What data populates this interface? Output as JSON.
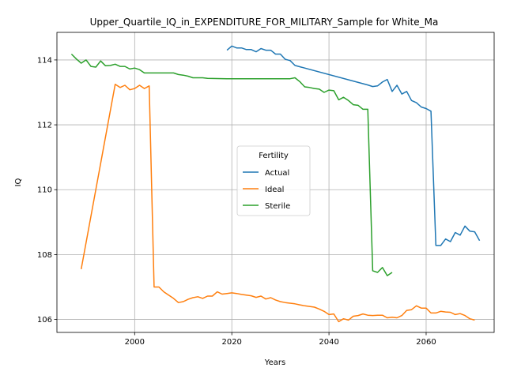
{
  "chart_data": {
    "type": "line",
    "title": "Upper_Quartile_IQ_in_EXPENDITURE_FOR_MILITARY_Sample for White_Ma",
    "xlabel": "Years",
    "ylabel": "IQ",
    "xlim": [
      1984,
      2074
    ],
    "ylim": [
      105.6,
      114.85
    ],
    "xticks": [
      2000,
      2020,
      2040,
      2060
    ],
    "yticks": [
      106,
      108,
      110,
      112,
      114
    ],
    "grid": true,
    "legend": {
      "title": "Fertility",
      "placement": "center"
    },
    "series": [
      {
        "name": "Actual",
        "color": "#1f77b4",
        "points": [
          [
            2019,
            114.3
          ],
          [
            2020,
            114.43
          ],
          [
            2021,
            114.37
          ],
          [
            2022,
            114.37
          ],
          [
            2023,
            114.32
          ],
          [
            2024,
            114.32
          ],
          [
            2025,
            114.25
          ],
          [
            2026,
            114.35
          ],
          [
            2027,
            114.3
          ],
          [
            2028,
            114.3
          ],
          [
            2029,
            114.18
          ],
          [
            2030,
            114.18
          ],
          [
            2031,
            114.02
          ],
          [
            2032,
            113.98
          ],
          [
            2033,
            113.83
          ],
          [
            2048,
            113.23
          ],
          [
            2049,
            113.18
          ],
          [
            2050,
            113.2
          ],
          [
            2051,
            113.32
          ],
          [
            2052,
            113.4
          ],
          [
            2053,
            113.03
          ],
          [
            2054,
            113.22
          ],
          [
            2055,
            112.95
          ],
          [
            2056,
            113.03
          ],
          [
            2057,
            112.75
          ],
          [
            2058,
            112.68
          ],
          [
            2059,
            112.55
          ],
          [
            2060,
            112.5
          ],
          [
            2061,
            112.42
          ],
          [
            2062,
            108.28
          ],
          [
            2063,
            108.28
          ],
          [
            2064,
            108.48
          ],
          [
            2065,
            108.4
          ],
          [
            2066,
            108.68
          ],
          [
            2067,
            108.6
          ],
          [
            2068,
            108.88
          ],
          [
            2069,
            108.72
          ],
          [
            2070,
            108.7
          ],
          [
            2071,
            108.43
          ]
        ]
      },
      {
        "name": "Ideal",
        "color": "#ff7f0e",
        "points": [
          [
            1989,
            107.55
          ],
          [
            1996,
            113.25
          ],
          [
            1997,
            113.15
          ],
          [
            1998,
            113.22
          ],
          [
            1999,
            113.08
          ],
          [
            2000,
            113.12
          ],
          [
            2001,
            113.22
          ],
          [
            2002,
            113.12
          ],
          [
            2003,
            113.2
          ],
          [
            2004,
            107.0
          ],
          [
            2005,
            107.0
          ],
          [
            2006,
            106.85
          ],
          [
            2007,
            106.75
          ],
          [
            2008,
            106.65
          ],
          [
            2009,
            106.52
          ],
          [
            2010,
            106.55
          ],
          [
            2011,
            106.62
          ],
          [
            2012,
            106.67
          ],
          [
            2013,
            106.7
          ],
          [
            2014,
            106.65
          ],
          [
            2015,
            106.72
          ],
          [
            2016,
            106.72
          ],
          [
            2017,
            106.85
          ],
          [
            2018,
            106.78
          ],
          [
            2019,
            106.8
          ],
          [
            2020,
            106.82
          ],
          [
            2021,
            106.8
          ],
          [
            2022,
            106.77
          ],
          [
            2023,
            106.75
          ],
          [
            2024,
            106.73
          ],
          [
            2025,
            106.68
          ],
          [
            2026,
            106.72
          ],
          [
            2027,
            106.63
          ],
          [
            2028,
            106.67
          ],
          [
            2029,
            106.6
          ],
          [
            2030,
            106.55
          ],
          [
            2031,
            106.52
          ],
          [
            2032,
            106.5
          ],
          [
            2033,
            106.48
          ],
          [
            2034,
            106.45
          ],
          [
            2035,
            106.42
          ],
          [
            2036,
            106.4
          ],
          [
            2037,
            106.38
          ],
          [
            2038,
            106.32
          ],
          [
            2039,
            106.25
          ],
          [
            2040,
            106.15
          ],
          [
            2041,
            106.17
          ],
          [
            2042,
            105.93
          ],
          [
            2043,
            106.02
          ],
          [
            2044,
            105.98
          ],
          [
            2045,
            106.1
          ],
          [
            2046,
            106.12
          ],
          [
            2047,
            106.17
          ],
          [
            2048,
            106.13
          ],
          [
            2049,
            106.12
          ],
          [
            2050,
            106.13
          ],
          [
            2051,
            106.13
          ],
          [
            2052,
            106.05
          ],
          [
            2053,
            106.07
          ],
          [
            2054,
            106.05
          ],
          [
            2055,
            106.12
          ],
          [
            2056,
            106.28
          ],
          [
            2057,
            106.3
          ],
          [
            2058,
            106.42
          ],
          [
            2059,
            106.35
          ],
          [
            2060,
            106.35
          ],
          [
            2061,
            106.2
          ],
          [
            2062,
            106.2
          ],
          [
            2063,
            106.25
          ],
          [
            2064,
            106.23
          ],
          [
            2065,
            106.22
          ],
          [
            2066,
            106.15
          ],
          [
            2067,
            106.18
          ],
          [
            2068,
            106.12
          ],
          [
            2069,
            106.02
          ],
          [
            2070,
            105.98
          ]
        ]
      },
      {
        "name": "Sterile",
        "color": "#2ca02c",
        "points": [
          [
            1987,
            114.18
          ],
          [
            1988,
            114.03
          ],
          [
            1989,
            113.9
          ],
          [
            1990,
            114.0
          ],
          [
            1991,
            113.8
          ],
          [
            1992,
            113.78
          ],
          [
            1993,
            113.97
          ],
          [
            1994,
            113.82
          ],
          [
            1995,
            113.83
          ],
          [
            1996,
            113.87
          ],
          [
            1997,
            113.8
          ],
          [
            1998,
            113.8
          ],
          [
            1999,
            113.72
          ],
          [
            2000,
            113.75
          ],
          [
            2001,
            113.7
          ],
          [
            2002,
            113.6
          ],
          [
            2008,
            113.6
          ],
          [
            2009,
            113.55
          ],
          [
            2010,
            113.53
          ],
          [
            2011,
            113.5
          ],
          [
            2012,
            113.45
          ],
          [
            2013,
            113.45
          ],
          [
            2014,
            113.45
          ],
          [
            2015,
            113.43
          ],
          [
            2019,
            113.42
          ],
          [
            2032,
            113.42
          ],
          [
            2033,
            113.45
          ],
          [
            2034,
            113.33
          ],
          [
            2035,
            113.17
          ],
          [
            2036,
            113.15
          ],
          [
            2037,
            113.12
          ],
          [
            2038,
            113.1
          ],
          [
            2039,
            113.0
          ],
          [
            2040,
            113.07
          ],
          [
            2041,
            113.05
          ],
          [
            2042,
            112.77
          ],
          [
            2043,
            112.85
          ],
          [
            2044,
            112.75
          ],
          [
            2045,
            112.62
          ],
          [
            2046,
            112.6
          ],
          [
            2047,
            112.48
          ],
          [
            2048,
            112.48
          ],
          [
            2049,
            107.5
          ],
          [
            2050,
            107.45
          ],
          [
            2051,
            107.6
          ],
          [
            2052,
            107.35
          ],
          [
            2053,
            107.45
          ]
        ]
      }
    ]
  }
}
